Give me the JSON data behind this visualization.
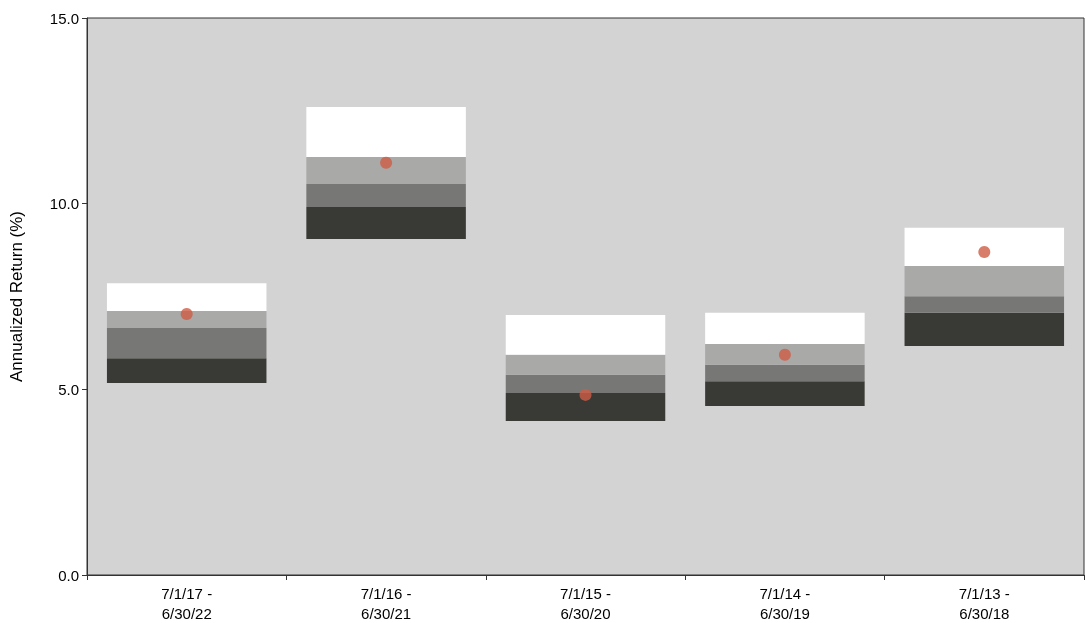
{
  "chart_data": {
    "type": "bar",
    "ylabel": "Annualized Return (%)",
    "categories": [
      "7/1/17 -\n6/30/22",
      "7/1/16 -\n6/30/21",
      "7/1/15 -\n6/30/20",
      "7/1/14 -\n6/30/19",
      "7/1/13 -\n6/30/18"
    ],
    "series": [
      {
        "color": "#393a35",
        "base": [
          5.17,
          9.05,
          4.15,
          4.55,
          6.17
        ],
        "values": [
          0.67,
          0.86,
          0.75,
          0.67,
          0.89
        ]
      },
      {
        "color": "#777775",
        "base": [
          5.84,
          9.91,
          4.9,
          5.22,
          7.06
        ],
        "values": [
          0.81,
          0.62,
          0.49,
          0.44,
          0.45
        ]
      },
      {
        "color": "#a9a9a8",
        "base": [
          6.65,
          10.53,
          5.39,
          5.66,
          7.51
        ],
        "values": [
          0.46,
          0.73,
          0.54,
          0.56,
          0.81
        ]
      },
      {
        "color": "#ffffff",
        "base": [
          7.11,
          11.26,
          5.93,
          6.22,
          8.32
        ],
        "values": [
          0.75,
          1.34,
          1.07,
          0.84,
          1.03
        ]
      },
      {
        "type": "scatter",
        "color": "#cd5c45",
        "marker": "circle",
        "x": [
          "7/1/17 -\n6/30/22",
          "7/1/16 -\n6/30/21",
          "7/1/15 -\n6/30/20",
          "7/1/14 -\n6/30/19",
          "7/1/13 -\n6/30/18"
        ],
        "values": [
          7.03,
          11.1,
          4.85,
          5.93,
          8.7
        ]
      }
    ],
    "ylim": [
      0,
      15
    ],
    "yticks": [
      {
        "value": 0,
        "label": "0.0"
      },
      {
        "value": 5,
        "label": "5.0"
      },
      {
        "value": 10,
        "label": "10.0"
      },
      {
        "value": 15,
        "label": "15.0"
      }
    ],
    "grid": false
  }
}
